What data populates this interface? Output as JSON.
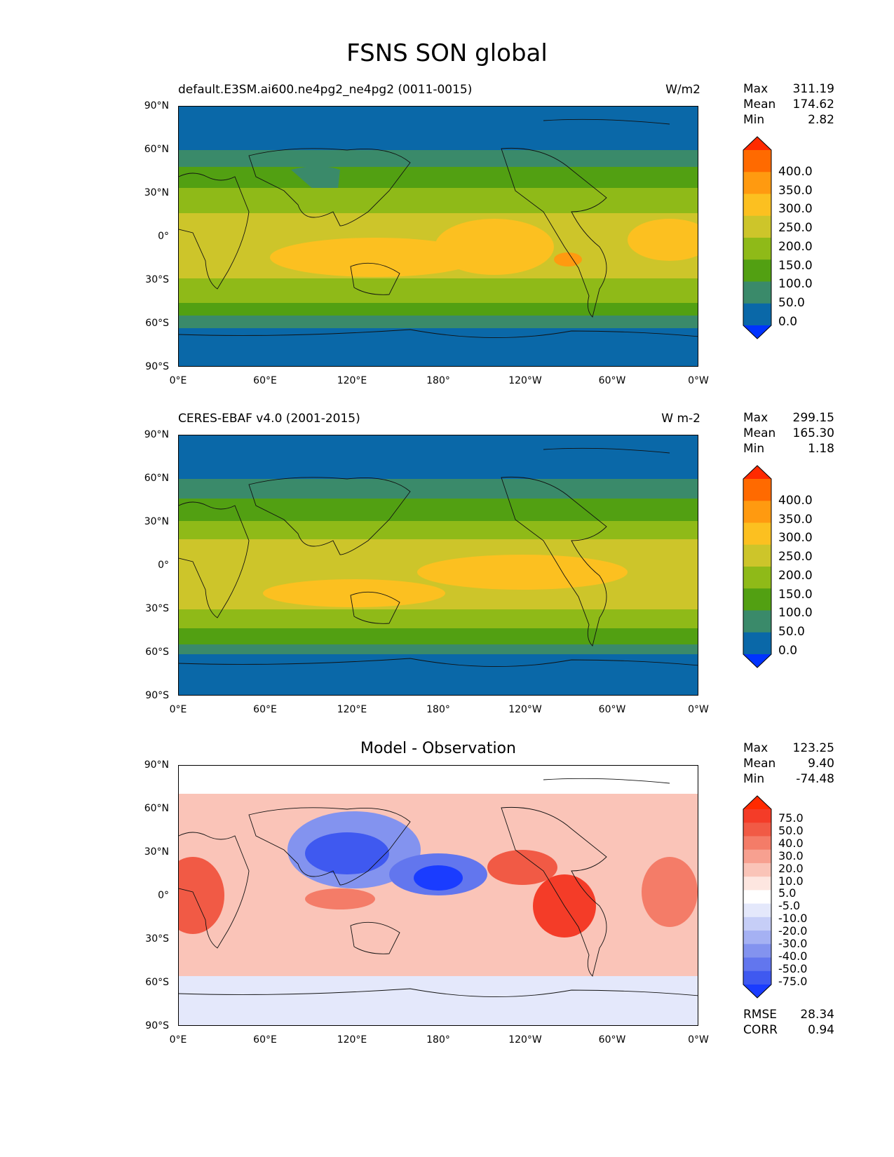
{
  "figure_title": "FSNS SON global",
  "xticks": [
    "0°E",
    "60°E",
    "120°E",
    "180°",
    "120°W",
    "60°W",
    "0°W"
  ],
  "yticks": [
    "90°N",
    "60°N",
    "30°N",
    "0°",
    "30°S",
    "60°S",
    "90°S"
  ],
  "panels": [
    {
      "title_left": "default.E3SM.ai600.ne4pg2_ne4pg2 (0011-0015)",
      "title_right": "W/m2",
      "stats": {
        "max_label": "Max",
        "max": "311.19",
        "mean_label": "Mean",
        "mean": "174.62",
        "min_label": "Min",
        "min": "2.82"
      },
      "levels": [
        "400.0",
        "350.0",
        "300.0",
        "250.0",
        "200.0",
        "150.0",
        "100.0",
        "50.0",
        "0.0"
      ],
      "colors": [
        "#ff2a00",
        "#ff6a00",
        "#ff9a10",
        "#fcc020",
        "#cdc52a",
        "#8fba18",
        "#52a012",
        "#3a8a6a",
        "#0a68a8",
        "#0033ff"
      ]
    },
    {
      "title_left": "CERES-EBAF v4.0 (2001-2015)",
      "title_right": "W m-2",
      "stats": {
        "max_label": "Max",
        "max": "299.15",
        "mean_label": "Mean",
        "mean": "165.30",
        "min_label": "Min",
        "min": "1.18"
      },
      "levels": [
        "400.0",
        "350.0",
        "300.0",
        "250.0",
        "200.0",
        "150.0",
        "100.0",
        "50.0",
        "0.0"
      ],
      "colors": [
        "#ff2a00",
        "#ff6a00",
        "#ff9a10",
        "#fcc020",
        "#cdc52a",
        "#8fba18",
        "#52a012",
        "#3a8a6a",
        "#0a68a8",
        "#0033ff"
      ]
    },
    {
      "title_center": "Model - Observation",
      "stats": {
        "max_label": "Max",
        "max": "123.25",
        "mean_label": "Mean",
        "mean": "9.40",
        "min_label": "Min",
        "min": "-74.48"
      },
      "levels": [
        "75.0",
        "50.0",
        "40.0",
        "30.0",
        "20.0",
        "10.0",
        "5.0",
        "-5.0",
        "-10.0",
        "-20.0",
        "-30.0",
        "-40.0",
        "-50.0",
        "-75.0"
      ],
      "colors": [
        "#ff2a00",
        "#f43c28",
        "#f15a45",
        "#f47c68",
        "#f7a090",
        "#fac4b8",
        "#fde6e0",
        "#ffffff",
        "#e4e8fb",
        "#c6cef7",
        "#a5b1f3",
        "#8393ef",
        "#6276ee",
        "#3f59f0",
        "#1a3cff"
      ],
      "rmse_label": "RMSE",
      "rmse": "28.34",
      "corr_label": "CORR",
      "corr": "0.94"
    }
  ]
}
